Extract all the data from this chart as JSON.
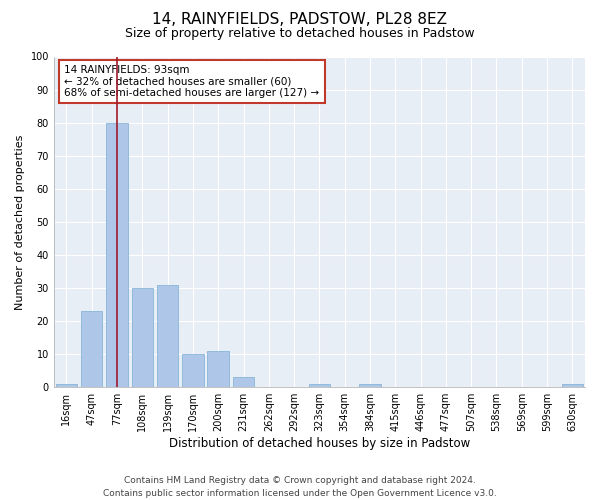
{
  "title": "14, RAINYFIELDS, PADSTOW, PL28 8EZ",
  "subtitle": "Size of property relative to detached houses in Padstow",
  "xlabel": "Distribution of detached houses by size in Padstow",
  "ylabel": "Number of detached properties",
  "categories": [
    "16sqm",
    "47sqm",
    "77sqm",
    "108sqm",
    "139sqm",
    "170sqm",
    "200sqm",
    "231sqm",
    "262sqm",
    "292sqm",
    "323sqm",
    "354sqm",
    "384sqm",
    "415sqm",
    "446sqm",
    "477sqm",
    "507sqm",
    "538sqm",
    "569sqm",
    "599sqm",
    "630sqm"
  ],
  "values": [
    1,
    23,
    80,
    30,
    31,
    10,
    11,
    3,
    0,
    0,
    1,
    0,
    1,
    0,
    0,
    0,
    0,
    0,
    0,
    0,
    1
  ],
  "bar_color": "#aec6e8",
  "bar_edge_color": "#7aadd4",
  "highlight_bar_index": 2,
  "highlight_color": "#a0192a",
  "annotation_box_text": "14 RAINYFIELDS: 93sqm\n← 32% of detached houses are smaller (60)\n68% of semi-detached houses are larger (127) →",
  "annotation_box_color": "#c0392b",
  "ylim": [
    0,
    100
  ],
  "yticks": [
    0,
    10,
    20,
    30,
    40,
    50,
    60,
    70,
    80,
    90,
    100
  ],
  "background_color": "#e8eef6",
  "grid_color": "#ffffff",
  "footer_line1": "Contains HM Land Registry data © Crown copyright and database right 2024.",
  "footer_line2": "Contains public sector information licensed under the Open Government Licence v3.0.",
  "title_fontsize": 11,
  "subtitle_fontsize": 9,
  "xlabel_fontsize": 8.5,
  "ylabel_fontsize": 8,
  "tick_fontsize": 7,
  "footer_fontsize": 6.5,
  "annotation_fontsize": 7.5
}
